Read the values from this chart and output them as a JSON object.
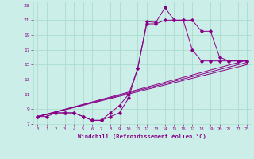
{
  "xlabel": "Windchill (Refroidissement éolien,°C)",
  "bg_color": "#cceee8",
  "grid_color": "#aaddcc",
  "line_color": "#880088",
  "xlim": [
    -0.5,
    23.5
  ],
  "ylim": [
    7,
    23.5
  ],
  "xticks": [
    0,
    1,
    2,
    3,
    4,
    5,
    6,
    7,
    8,
    9,
    10,
    11,
    12,
    13,
    14,
    15,
    16,
    17,
    18,
    19,
    20,
    21,
    22,
    23
  ],
  "yticks": [
    7,
    9,
    11,
    13,
    15,
    17,
    19,
    21,
    23
  ],
  "line1_x": [
    0,
    1,
    2,
    3,
    4,
    5,
    6,
    7,
    8,
    9,
    10,
    11,
    12,
    13,
    14,
    15,
    16,
    17,
    18,
    19,
    20,
    21,
    22,
    23
  ],
  "line1_y": [
    8,
    8,
    8.5,
    8.5,
    8.5,
    8,
    7.5,
    7.5,
    8,
    8.5,
    10.5,
    14.5,
    20.8,
    20.7,
    22.7,
    21,
    21,
    21,
    19.5,
    19.5,
    16,
    15.5,
    15.5,
    15.5
  ],
  "line2_x": [
    0,
    2,
    3,
    4,
    5,
    6,
    7,
    8,
    9,
    10,
    11,
    12,
    13,
    14,
    15,
    16,
    17,
    18,
    19,
    20,
    21,
    22,
    23
  ],
  "line2_y": [
    8,
    8.5,
    8.5,
    8.5,
    8,
    7.5,
    7.5,
    8.5,
    9.5,
    11,
    14.5,
    20.5,
    20.5,
    21,
    21,
    21,
    17,
    15.5,
    15.5,
    15.5,
    15.5,
    15.5,
    15.5
  ],
  "line3_x": [
    0,
    23
  ],
  "line3_y": [
    8,
    15.3
  ],
  "line4_x": [
    0,
    23
  ],
  "line4_y": [
    8,
    15.6
  ],
  "line5_x": [
    0,
    23
  ],
  "line5_y": [
    8,
    15.0
  ]
}
